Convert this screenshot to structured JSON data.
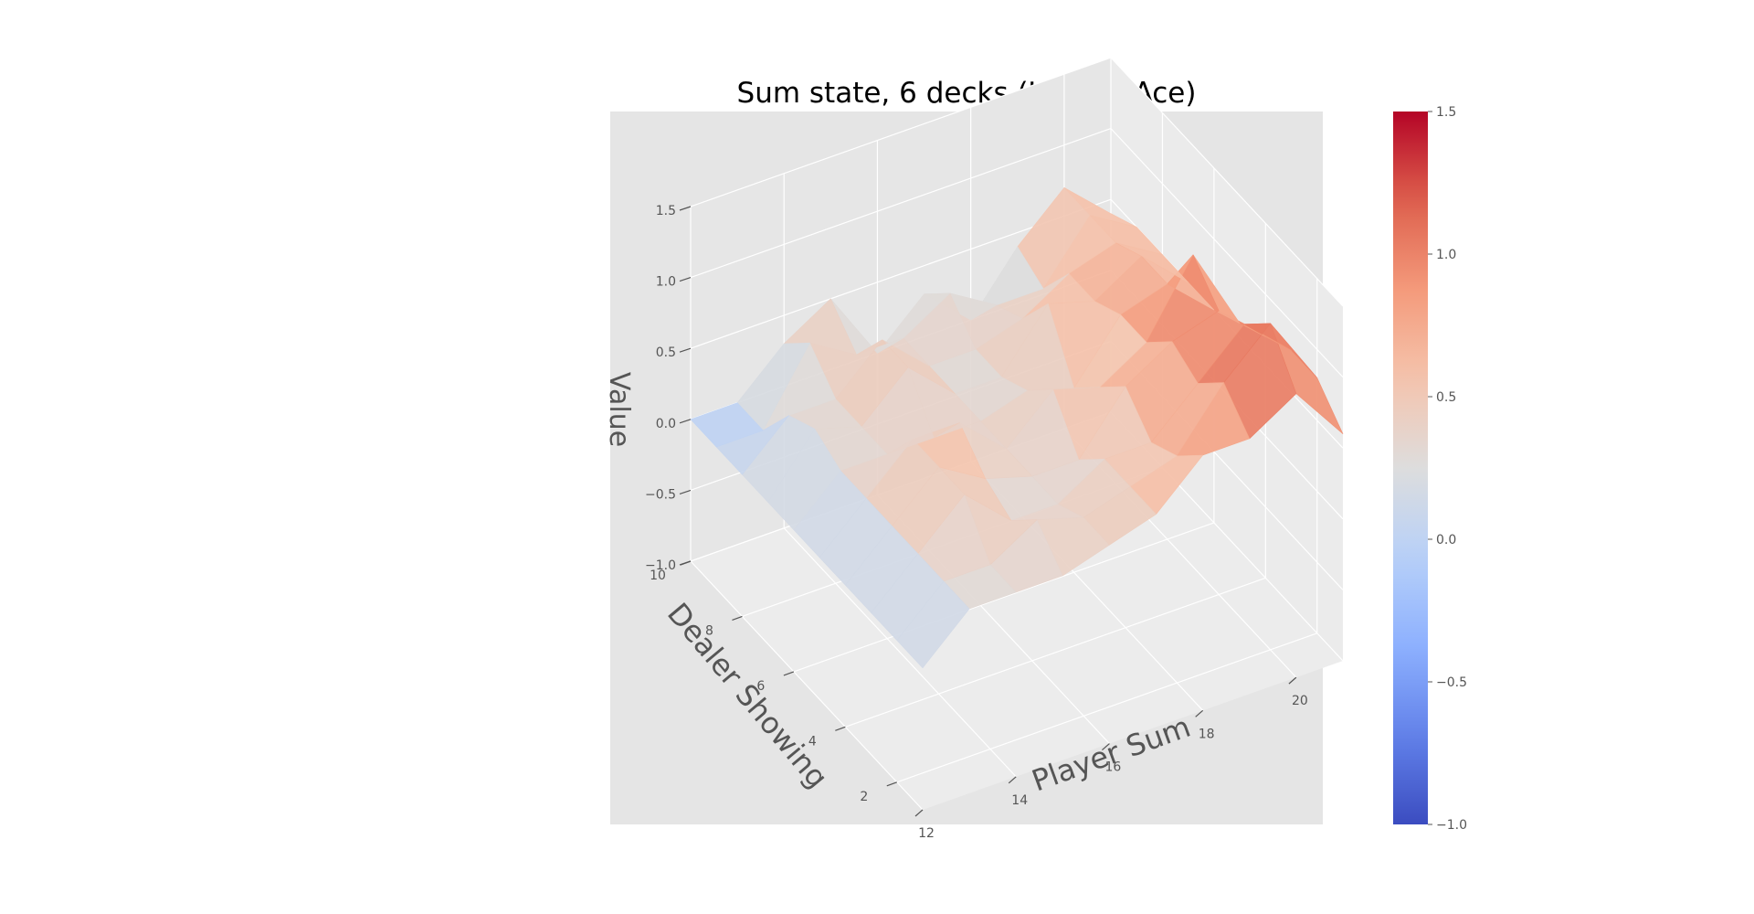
{
  "chart_data": {
    "type": "surface3d",
    "title": "Sum state, 6 decks (Usable Ace)",
    "xlabel": "Player Sum",
    "ylabel": "Dealer Showing",
    "zlabel": "Value",
    "x": [
      12,
      13,
      14,
      15,
      16,
      17,
      18,
      19,
      20,
      21
    ],
    "y": [
      1,
      2,
      3,
      4,
      5,
      6,
      7,
      8,
      9,
      10
    ],
    "xticks": [
      12,
      14,
      16,
      18,
      20
    ],
    "yticks": [
      2,
      4,
      6,
      8,
      10
    ],
    "zlim": [
      -1.0,
      1.5
    ],
    "zticks": [
      "−1.0",
      "−0.5",
      "0.0",
      "0.5",
      "1.0",
      "1.5"
    ],
    "z": [
      [
        0.0,
        0.3,
        0.3,
        0.3,
        0.4,
        0.5,
        0.8,
        0.8,
        1.0,
        0.6
      ],
      [
        0.0,
        0.3,
        0.3,
        0.5,
        0.4,
        0.5,
        0.6,
        1.0,
        1.3,
        0.8
      ],
      [
        0.0,
        0.3,
        0.6,
        0.3,
        0.3,
        0.5,
        0.5,
        0.8,
        1.1,
        0.8
      ],
      [
        0.0,
        0.3,
        0.6,
        0.4,
        0.3,
        0.3,
        0.7,
        0.9,
        1.0,
        0.7
      ],
      [
        0.0,
        0.3,
        0.6,
        0.6,
        0.3,
        0.6,
        0.5,
        0.7,
        1.2,
        0.6
      ],
      [
        0.0,
        0.3,
        0.3,
        0.3,
        0.3,
        0.4,
        0.3,
        0.7,
        0.8,
        0.5
      ],
      [
        0.0,
        0.4,
        0.3,
        0.6,
        0.3,
        0.3,
        0.7,
        0.6,
        0.8,
        0.5
      ],
      [
        0.0,
        0.3,
        0.3,
        0.6,
        0.3,
        0.3,
        0.4,
        0.6,
        0.7,
        0.5
      ],
      [
        0.0,
        0.0,
        0.5,
        0.3,
        0.3,
        0.5,
        0.3,
        0.3,
        0.7,
        0.5
      ],
      [
        0.0,
        0.0,
        0.3,
        0.5,
        0.0,
        0.3,
        0.0,
        0.4,
        0.7,
        0.4
      ]
    ],
    "colorbar": {
      "colormap": "coolwarm",
      "range": [
        -1.0,
        1.5
      ],
      "ticks": [
        -1.0,
        -0.5,
        0.0,
        0.5,
        1.0,
        1.5
      ],
      "tick_labels": [
        "−1.0",
        "−0.5",
        "0.0",
        "0.5",
        "1.0",
        "1.5"
      ]
    },
    "colors": {
      "pane_background": "#e5e5e5",
      "grid": "#ffffff",
      "text": "#555555",
      "title": "#000000"
    },
    "grid": true
  }
}
